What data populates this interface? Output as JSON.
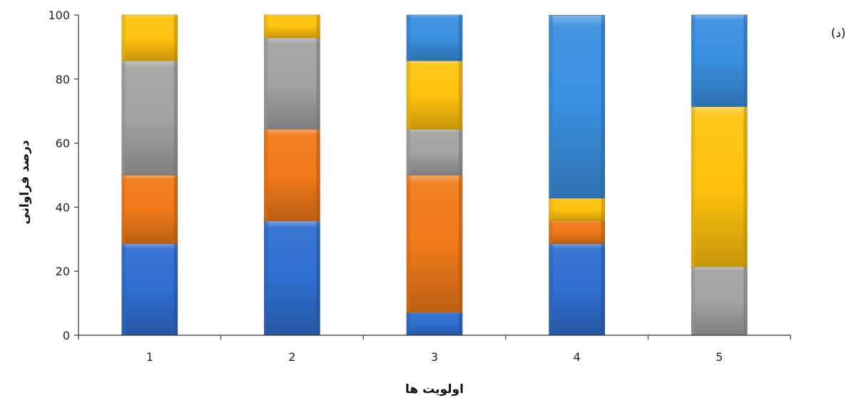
{
  "chart_data": {
    "type": "bar",
    "stacked": true,
    "panel_label": "(د)",
    "xlabel": "اولویت ها",
    "ylabel": "درصد فراوانی",
    "ylim": [
      0,
      100
    ],
    "yticks": [
      0,
      20,
      40,
      60,
      80,
      100
    ],
    "categories": [
      "1",
      "2",
      "3",
      "4",
      "5"
    ],
    "grid": false,
    "legend": "none",
    "series": [
      {
        "color": "#2f6fd0",
        "values": [
          28.6,
          35.7,
          7.1,
          28.6,
          0
        ]
      },
      {
        "color": "#f07a1a",
        "values": [
          21.4,
          28.6,
          42.9,
          7.1,
          0
        ]
      },
      {
        "color": "#a3a3a3",
        "values": [
          35.7,
          28.6,
          14.3,
          0,
          21.4
        ]
      },
      {
        "color": "#ffc20e",
        "values": [
          14.3,
          7.1,
          21.4,
          7.1,
          50.0
        ]
      },
      {
        "color": "#3a8fe0",
        "values": [
          0,
          0,
          14.3,
          57.1,
          28.6
        ]
      }
    ]
  }
}
